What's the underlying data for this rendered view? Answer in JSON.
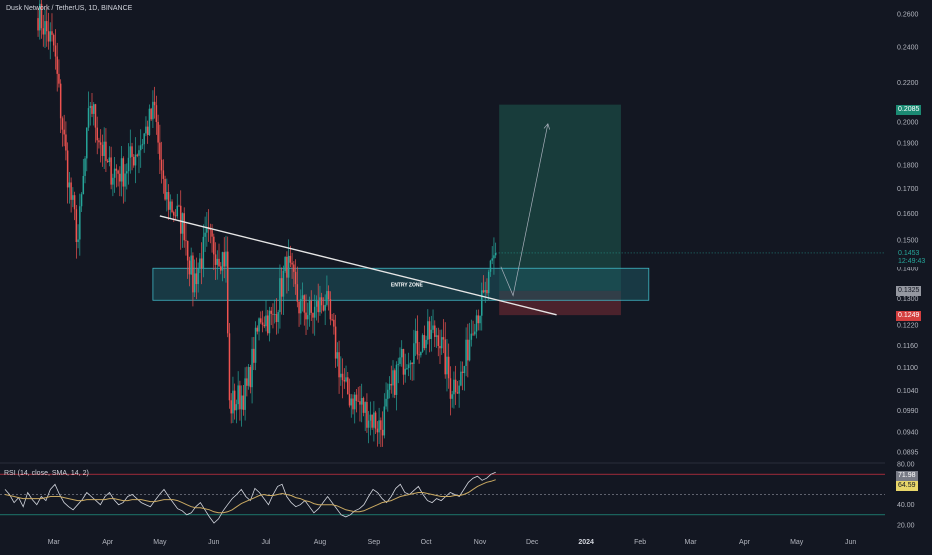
{
  "header": {
    "symbol_line": "Dusk Network / TetherUS, 1D, BINANCE",
    "rsi_line": "RSI (14, close, SMA, 14, 2)"
  },
  "price_tags": {
    "target": "0.2085",
    "current": "0.1453",
    "countdown": "12:49:43",
    "entry": "0.1325",
    "stop": "0.1249",
    "rsi_value": "71.98",
    "rsi_sma": "64.59"
  },
  "annotation": {
    "entry_zone": "ENTRY ZONE"
  },
  "colors": {
    "background": "#131722",
    "up": "#26a69a",
    "down": "#ef5350",
    "target_zone": "#1b4a44",
    "stop_zone": "#5a2630",
    "entry_zone": "#1d5561",
    "rsi_line": "#d1d4dc",
    "rsi_sma": "#c9a962"
  },
  "chart_data": [
    {
      "type": "candlestick",
      "title": "Dusk Network / TetherUS, 1D, BINANCE",
      "x_axis": {
        "labels": [
          "Mar",
          "Apr",
          "May",
          "Jun",
          "Jul",
          "Aug",
          "Sep",
          "Oct",
          "Nov",
          "Dec",
          "2024",
          "Feb",
          "Mar",
          "Apr",
          "May",
          "Jun"
        ],
        "label_dates": [
          "2023-03-01",
          "2023-04-01",
          "2023-05-01",
          "2023-06-01",
          "2023-07-01",
          "2023-08-01",
          "2023-09-01",
          "2023-10-01",
          "2023-11-01",
          "2023-12-01",
          "2024-01-01",
          "2024-02-01",
          "2024-03-01",
          "2024-04-01",
          "2024-05-01",
          "2024-06-01"
        ]
      },
      "y_axis": {
        "scale": "log",
        "ticks": [
          0.26,
          0.24,
          0.22,
          0.2,
          0.19,
          0.18,
          0.17,
          0.16,
          0.15,
          0.14,
          0.13,
          0.122,
          0.116,
          0.11,
          0.104,
          0.099,
          0.094,
          0.0895
        ],
        "tick_labels": [
          "0.2600",
          "0.2400",
          "0.2200",
          "0.2000",
          "0.1900",
          "0.1800",
          "0.1700",
          "0.1600",
          "0.1500",
          "0.1400",
          "0.1300",
          "0.1220",
          "0.1160",
          "0.1100",
          "0.1040",
          "0.0990",
          "0.0940",
          "0.0895"
        ]
      },
      "series_close_anchors": [
        {
          "date": "2023-02-20",
          "close": 0.26
        },
        {
          "date": "2023-03-01",
          "close": 0.24
        },
        {
          "date": "2023-03-10",
          "close": 0.17
        },
        {
          "date": "2023-03-15",
          "close": 0.15
        },
        {
          "date": "2023-03-22",
          "close": 0.21
        },
        {
          "date": "2023-04-01",
          "close": 0.178
        },
        {
          "date": "2023-04-10",
          "close": 0.177
        },
        {
          "date": "2023-04-20",
          "close": 0.19
        },
        {
          "date": "2023-04-28",
          "close": 0.206
        },
        {
          "date": "2023-05-03",
          "close": 0.168
        },
        {
          "date": "2023-05-15",
          "close": 0.155
        },
        {
          "date": "2023-05-20",
          "close": 0.135
        },
        {
          "date": "2023-05-28",
          "close": 0.15
        },
        {
          "date": "2023-06-08",
          "close": 0.143
        },
        {
          "date": "2023-06-10",
          "close": 0.1
        },
        {
          "date": "2023-06-20",
          "close": 0.104
        },
        {
          "date": "2023-06-28",
          "close": 0.125
        },
        {
          "date": "2023-07-05",
          "close": 0.123
        },
        {
          "date": "2023-07-13",
          "close": 0.142
        },
        {
          "date": "2023-07-20",
          "close": 0.128
        },
        {
          "date": "2023-07-27",
          "close": 0.125
        },
        {
          "date": "2023-08-04",
          "close": 0.13
        },
        {
          "date": "2023-08-15",
          "close": 0.104
        },
        {
          "date": "2023-08-25",
          "close": 0.1
        },
        {
          "date": "2023-09-05",
          "close": 0.095
        },
        {
          "date": "2023-09-15",
          "close": 0.11
        },
        {
          "date": "2023-09-22",
          "close": 0.115
        },
        {
          "date": "2023-10-01",
          "close": 0.118
        },
        {
          "date": "2023-10-08",
          "close": 0.12
        },
        {
          "date": "2023-10-15",
          "close": 0.105
        },
        {
          "date": "2023-10-22",
          "close": 0.108
        },
        {
          "date": "2023-10-28",
          "close": 0.124
        },
        {
          "date": "2023-11-04",
          "close": 0.13
        },
        {
          "date": "2023-11-10",
          "close": 0.1453
        }
      ],
      "overlays": {
        "trendline": {
          "from": {
            "date": "2023-05-01",
            "price": 0.159
          },
          "to": {
            "date": "2023-12-15",
            "price": 0.125
          }
        },
        "entry_zone": {
          "from": "2023-04-27",
          "to": "2024-02-06",
          "top": 0.14,
          "bottom": 0.1295
        },
        "long_position": {
          "from": "2023-11-12",
          "to": "2024-01-21",
          "target": 0.2085,
          "entry": 0.1325,
          "stop": 0.1249
        },
        "projection": [
          {
            "date": "2023-11-13",
            "price": 0.1405
          },
          {
            "date": "2023-11-20",
            "price": 0.131
          },
          {
            "date": "2023-12-10",
            "price": 0.199
          }
        ]
      }
    },
    {
      "type": "line",
      "title": "RSI (14, close, SMA, 14, 2)",
      "y_axis": {
        "ticks": [
          80,
          40,
          20
        ],
        "tick_labels": [
          "80.00",
          "40.00",
          "20.00"
        ]
      },
      "levels": [
        70,
        50,
        30
      ],
      "series": [
        {
          "name": "RSI",
          "values": [
            55,
            50,
            42,
            47,
            38,
            52,
            45,
            40,
            48,
            44,
            55,
            60,
            50,
            42,
            38,
            35,
            40,
            45,
            52,
            48,
            44,
            40,
            48,
            52,
            45,
            40,
            42,
            48,
            50,
            46,
            42,
            40,
            38,
            44,
            50,
            55,
            48,
            42,
            36,
            34,
            30,
            32,
            38,
            42,
            35,
            28,
            22,
            26,
            34,
            40,
            46,
            50,
            55,
            48,
            44,
            56,
            52,
            46,
            40,
            50,
            58,
            60,
            48,
            42,
            38,
            40,
            44,
            38,
            32,
            36,
            42,
            48,
            42,
            36,
            30,
            28,
            30,
            34,
            36,
            40,
            48,
            55,
            52,
            46,
            42,
            48,
            56,
            60,
            52,
            50,
            54,
            58,
            50,
            44,
            42,
            46,
            44,
            48,
            52,
            50,
            48,
            55,
            62,
            66,
            68,
            64,
            66,
            70,
            71.98
          ]
        },
        {
          "name": "SMA",
          "values": [
            50,
            49,
            48,
            47,
            46,
            46,
            46,
            46,
            46,
            47,
            48,
            48,
            48,
            47,
            46,
            45,
            44,
            44,
            45,
            45,
            45,
            45,
            45,
            46,
            46,
            45,
            44,
            44,
            45,
            45,
            45,
            44,
            43,
            43,
            44,
            45,
            45,
            45,
            44,
            42,
            40,
            38,
            37,
            37,
            36,
            35,
            33,
            32,
            32,
            33,
            35,
            38,
            41,
            43,
            45,
            47,
            49,
            50,
            49,
            49,
            50,
            51,
            50,
            49,
            47,
            46,
            44,
            43,
            41,
            40,
            40,
            40,
            40,
            39,
            37,
            35,
            34,
            33,
            33,
            34,
            36,
            38,
            40,
            42,
            43,
            44,
            46,
            48,
            49,
            50,
            51,
            52,
            52,
            51,
            50,
            49,
            48,
            48,
            48,
            49,
            49,
            50,
            52,
            55,
            58,
            60,
            62,
            63,
            64.59
          ]
        }
      ]
    }
  ]
}
